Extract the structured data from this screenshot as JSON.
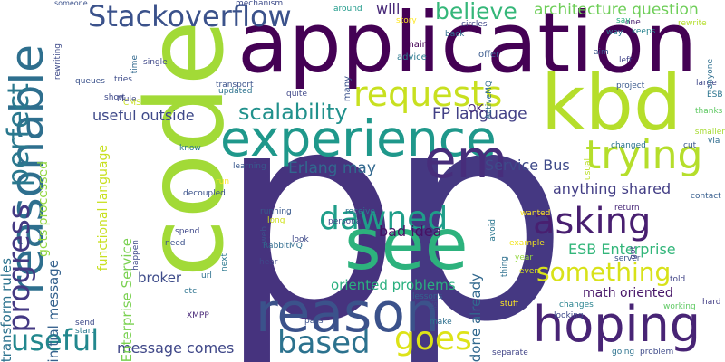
{
  "words": [
    {
      "text": "p",
      "color": "#46337e"
    },
    {
      "text": "p",
      "color": "#453882"
    },
    {
      "text": "code",
      "color": "#a2da37"
    },
    {
      "text": "application",
      "color": "#440154"
    },
    {
      "text": "see",
      "color": "#2db27d"
    },
    {
      "text": "kbd",
      "color": "#b5de2b"
    },
    {
      "text": "reasonable",
      "color": "#2e6f8e"
    },
    {
      "text": "experience",
      "color": "#1f988b"
    },
    {
      "text": "reason",
      "color": "#3b528b"
    },
    {
      "text": "em",
      "color": "#472d7b"
    },
    {
      "text": "hoping",
      "color": "#482475"
    },
    {
      "text": "trying",
      "color": "#b5de2b"
    },
    {
      "text": "Stackoverflow",
      "color": "#3b528b"
    },
    {
      "text": "perfect",
      "color": "#2a788e"
    },
    {
      "text": "progress",
      "color": "#443983"
    },
    {
      "text": "useful",
      "color": "#23888e"
    },
    {
      "text": "asking",
      "color": "#481f70"
    },
    {
      "text": "requests",
      "color": "#c8e020"
    },
    {
      "text": "dawned",
      "color": "#1f9e89"
    },
    {
      "text": "goes",
      "color": "#dde318"
    },
    {
      "text": "based",
      "color": "#2c728e"
    },
    {
      "text": "something",
      "color": "#d8e219"
    },
    {
      "text": "believe",
      "color": "#35b779"
    },
    {
      "text": "scalability",
      "color": "#21918c"
    },
    {
      "text": "architecture question",
      "color": "#6ece58"
    },
    {
      "text": "useful outside",
      "color": "#3e4989"
    },
    {
      "text": "FP language",
      "color": "#424086"
    },
    {
      "text": "Erlang may",
      "color": "#31688e"
    },
    {
      "text": "Service Bus",
      "color": "#3e4a89"
    },
    {
      "text": "anything shared",
      "color": "#433e85"
    },
    {
      "text": "ESB Enterprise",
      "color": "#32b67a"
    },
    {
      "text": "math oriented",
      "color": "#481769"
    },
    {
      "text": "oriented problems",
      "color": "#2ab07f"
    },
    {
      "text": "message comes",
      "color": "#3f4788"
    },
    {
      "text": "broker",
      "color": "#3e4c8a"
    },
    {
      "text": "bad idea",
      "color": "#471164"
    },
    {
      "text": "done already",
      "color": "#31688e"
    },
    {
      "text": "will",
      "color": "#482878"
    },
    {
      "text": "functional language",
      "color": "#c8e020"
    },
    {
      "text": "Enterprise Service",
      "color": "#7ad151"
    },
    {
      "text": "initial message",
      "color": "#34618d"
    },
    {
      "text": "transform rules",
      "color": "#2c728e"
    },
    {
      "text": "gets processed",
      "color": "#93d741"
    },
    {
      "text": "OK",
      "color": "#482677"
    },
    {
      "text": "many",
      "color": "#3b528b"
    },
    {
      "text": "main",
      "color": "#440154"
    },
    {
      "text": "advice",
      "color": "#2a788e"
    },
    {
      "text": "offer",
      "color": "#38598c"
    },
    {
      "text": "back",
      "color": "#2f6c8e"
    },
    {
      "text": "circles",
      "color": "#404688"
    },
    {
      "text": "around",
      "color": "#1f9a8a"
    },
    {
      "text": "mechanism",
      "color": "#3e4c8a"
    },
    {
      "text": "someone",
      "color": "#3b518b"
    },
    {
      "text": "story",
      "color": "#fde725"
    },
    {
      "text": "way",
      "color": "#2a768e"
    },
    {
      "text": "one",
      "color": "#482071"
    },
    {
      "text": "keeps",
      "color": "#26828e"
    },
    {
      "text": "say",
      "color": "#27ad81"
    },
    {
      "text": "rewrite",
      "color": "#b5de2b"
    },
    {
      "text": "aim",
      "color": "#3a548c"
    },
    {
      "text": "anyone",
      "color": "#2e6e8e"
    },
    {
      "text": "left",
      "color": "#404387"
    },
    {
      "text": "large",
      "color": "#3f4889"
    },
    {
      "text": "project",
      "color": "#38588c"
    },
    {
      "text": "ESB",
      "color": "#2b748e"
    },
    {
      "text": "thanks",
      "color": "#5ec962"
    },
    {
      "text": "smaller",
      "color": "#a8db34"
    },
    {
      "text": "via",
      "color": "#2f6c8e"
    },
    {
      "text": "cut",
      "color": "#39568c"
    },
    {
      "text": "changed",
      "color": "#2c738e"
    },
    {
      "text": "usual",
      "color": "#bade28"
    },
    {
      "text": "contact",
      "color": "#365d8d"
    },
    {
      "text": "return",
      "color": "#482878"
    },
    {
      "text": "wanted",
      "color": "#fde725"
    },
    {
      "text": "example",
      "color": "#f1e51d"
    },
    {
      "text": "year",
      "color": "#95d840"
    },
    {
      "text": "even",
      "color": "#d8e219"
    },
    {
      "text": "server",
      "color": "#3b528b"
    },
    {
      "text": "got",
      "color": "#414487"
    },
    {
      "text": "hard",
      "color": "#433e85"
    },
    {
      "text": "working",
      "color": "#5ec962"
    },
    {
      "text": "changes",
      "color": "#26828e"
    },
    {
      "text": "looking",
      "color": "#3e4989"
    },
    {
      "text": "problem",
      "color": "#3e4a89"
    },
    {
      "text": "going",
      "color": "#2c728e"
    },
    {
      "text": "stuff",
      "color": "#fde725"
    },
    {
      "text": "list",
      "color": "#3f4889"
    },
    {
      "text": "make",
      "color": "#2e6f8e"
    },
    {
      "text": "lessons",
      "color": "#33638d"
    },
    {
      "text": "pass",
      "color": "#3b528b"
    },
    {
      "text": "separate",
      "color": "#414487"
    },
    {
      "text": "avoid",
      "color": "#2a768e"
    },
    {
      "text": "personal",
      "color": "#3e4989"
    },
    {
      "text": "receive",
      "color": "#2d708e"
    },
    {
      "text": "long",
      "color": "#d0e11c"
    },
    {
      "text": "look",
      "color": "#3e4989"
    },
    {
      "text": "running",
      "color": "#38598c"
    },
    {
      "text": "web",
      "color": "#3b528b"
    },
    {
      "text": "RabbitMQ",
      "color": "#2f6b8e"
    },
    {
      "text": "hear",
      "color": "#3f4788"
    },
    {
      "text": "next",
      "color": "#2a788e"
    },
    {
      "text": "url",
      "color": "#2d708e"
    },
    {
      "text": "etc",
      "color": "#2c728e"
    },
    {
      "text": "XMPP",
      "color": "#482878"
    },
    {
      "text": "start",
      "color": "#2a788e"
    },
    {
      "text": "send",
      "color": "#3e4a89"
    },
    {
      "text": "need",
      "color": "#3b518b"
    },
    {
      "text": "spend",
      "color": "#3f4889"
    },
    {
      "text": "happen",
      "color": "#3e4989"
    },
    {
      "text": "run",
      "color": "#fde725"
    },
    {
      "text": "decoupled",
      "color": "#3b528b"
    },
    {
      "text": "learning",
      "color": "#38588c"
    },
    {
      "text": "know",
      "color": "#2a768e"
    },
    {
      "text": "tries",
      "color": "#3e4c8a"
    },
    {
      "text": "Mule",
      "color": "#3f4788"
    },
    {
      "text": "CMS",
      "color": "#c8e020"
    },
    {
      "text": "time",
      "color": "#31688e"
    },
    {
      "text": "queues",
      "color": "#3b528b"
    },
    {
      "text": "single",
      "color": "#3f4889"
    },
    {
      "text": "short",
      "color": "#3e4989"
    },
    {
      "text": "updated",
      "color": "#2c728e"
    },
    {
      "text": "transport",
      "color": "#3b528b"
    },
    {
      "text": "quite",
      "color": "#3f4788"
    },
    {
      "text": "ActiveMQ",
      "color": "#2f6c8e"
    },
    {
      "text": "told",
      "color": "#414487"
    },
    {
      "text": "rewriting",
      "color": "#3e4a89"
    },
    {
      "text": "thing",
      "color": "#2d708e"
    }
  ]
}
